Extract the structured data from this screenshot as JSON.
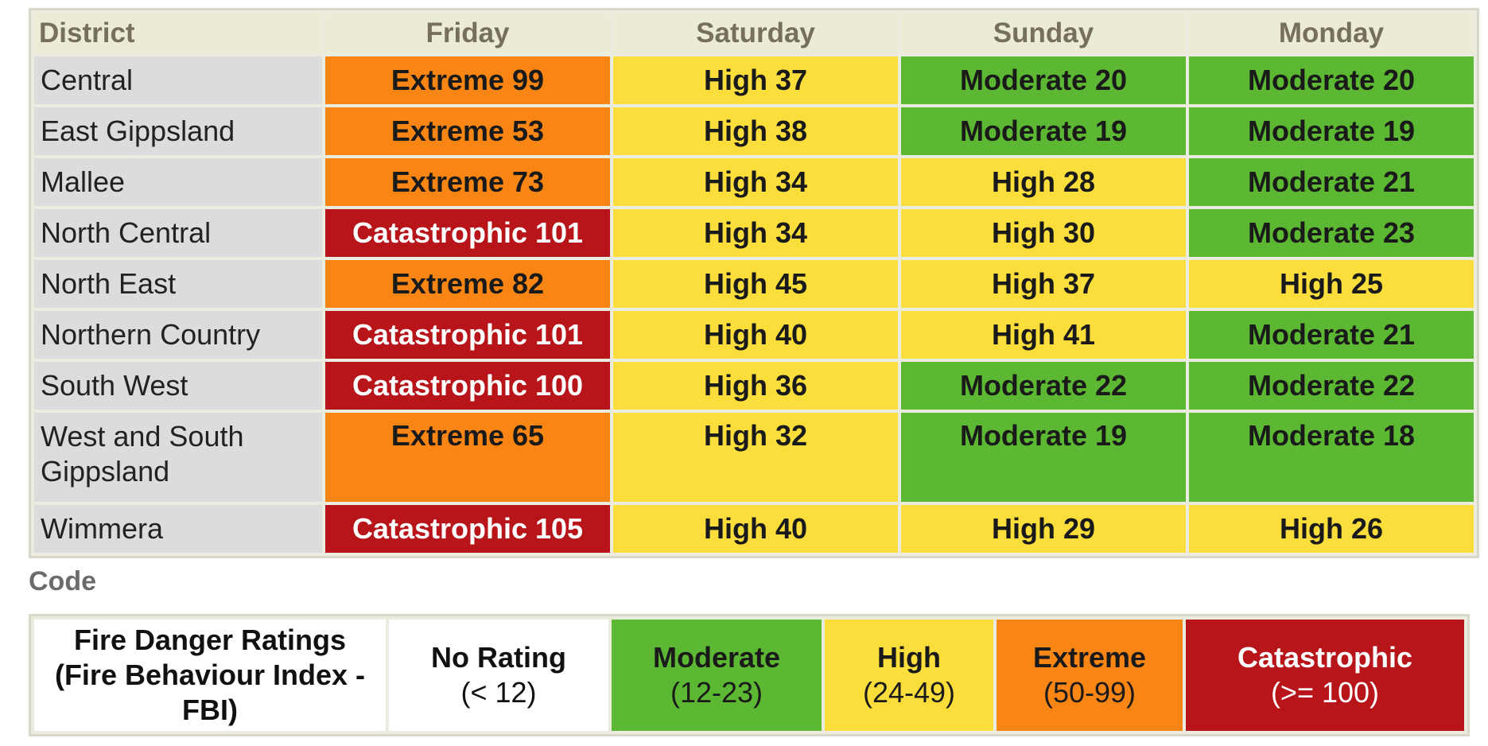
{
  "table": {
    "headers": [
      "District",
      "Friday",
      "Saturday",
      "Sunday",
      "Monday"
    ],
    "rows": [
      {
        "district": "Central",
        "days": [
          {
            "text": "Extreme 99",
            "level": "extreme"
          },
          {
            "text": "High 37",
            "level": "high"
          },
          {
            "text": "Moderate 20",
            "level": "moderate"
          },
          {
            "text": "Moderate 20",
            "level": "moderate"
          }
        ]
      },
      {
        "district": "East Gippsland",
        "days": [
          {
            "text": "Extreme 53",
            "level": "extreme"
          },
          {
            "text": "High 38",
            "level": "high"
          },
          {
            "text": "Moderate 19",
            "level": "moderate"
          },
          {
            "text": "Moderate 19",
            "level": "moderate"
          }
        ]
      },
      {
        "district": "Mallee",
        "days": [
          {
            "text": "Extreme 73",
            "level": "extreme"
          },
          {
            "text": "High 34",
            "level": "high"
          },
          {
            "text": "High 28",
            "level": "high"
          },
          {
            "text": "Moderate 21",
            "level": "moderate"
          }
        ]
      },
      {
        "district": "North Central",
        "days": [
          {
            "text": "Catastrophic 101",
            "level": "catastrophic"
          },
          {
            "text": "High 34",
            "level": "high"
          },
          {
            "text": "High 30",
            "level": "high"
          },
          {
            "text": "Moderate 23",
            "level": "moderate"
          }
        ]
      },
      {
        "district": "North East",
        "days": [
          {
            "text": "Extreme 82",
            "level": "extreme"
          },
          {
            "text": "High 45",
            "level": "high"
          },
          {
            "text": "High 37",
            "level": "high"
          },
          {
            "text": "High 25",
            "level": "high"
          }
        ]
      },
      {
        "district": "Northern Country",
        "days": [
          {
            "text": "Catastrophic 101",
            "level": "catastrophic"
          },
          {
            "text": "High 40",
            "level": "high"
          },
          {
            "text": "High 41",
            "level": "high"
          },
          {
            "text": "Moderate 21",
            "level": "moderate"
          }
        ]
      },
      {
        "district": "South West",
        "days": [
          {
            "text": "Catastrophic 100",
            "level": "catastrophic"
          },
          {
            "text": "High 36",
            "level": "high"
          },
          {
            "text": "Moderate 22",
            "level": "moderate"
          },
          {
            "text": "Moderate 22",
            "level": "moderate"
          }
        ]
      },
      {
        "district": "West and South Gippsland",
        "days": [
          {
            "text": "Extreme 65",
            "level": "extreme"
          },
          {
            "text": "High 32",
            "level": "high"
          },
          {
            "text": "Moderate 19",
            "level": "moderate"
          },
          {
            "text": "Moderate 18",
            "level": "moderate"
          }
        ]
      },
      {
        "district": "Wimmera",
        "days": [
          {
            "text": "Catastrophic 105",
            "level": "catastrophic"
          },
          {
            "text": "High 40",
            "level": "high"
          },
          {
            "text": "High 29",
            "level": "high"
          },
          {
            "text": "High 26",
            "level": "high"
          }
        ]
      }
    ]
  },
  "legend": {
    "title": "Code",
    "label_line1": "Fire Danger Ratings",
    "label_line2": "(Fire Behaviour Index -",
    "label_line3": "FBI)",
    "none_name": "No Rating",
    "none_range": "(< 12)",
    "moderate_name": "Moderate",
    "moderate_range": "(12-23)",
    "high_name": "High",
    "high_range": "(24-49)",
    "extreme_name": "Extreme",
    "extreme_range": "(50-99)",
    "catastrophic_name": "Catastrophic",
    "catastrophic_range": "(>= 100)"
  },
  "colors": {
    "moderate": "#5cb832",
    "high": "#fbdd3b",
    "extreme": "#f98514",
    "catastrophic": "#b8151a",
    "district_bg": "#dcdcdc",
    "header_bg": "#ecebd5"
  }
}
